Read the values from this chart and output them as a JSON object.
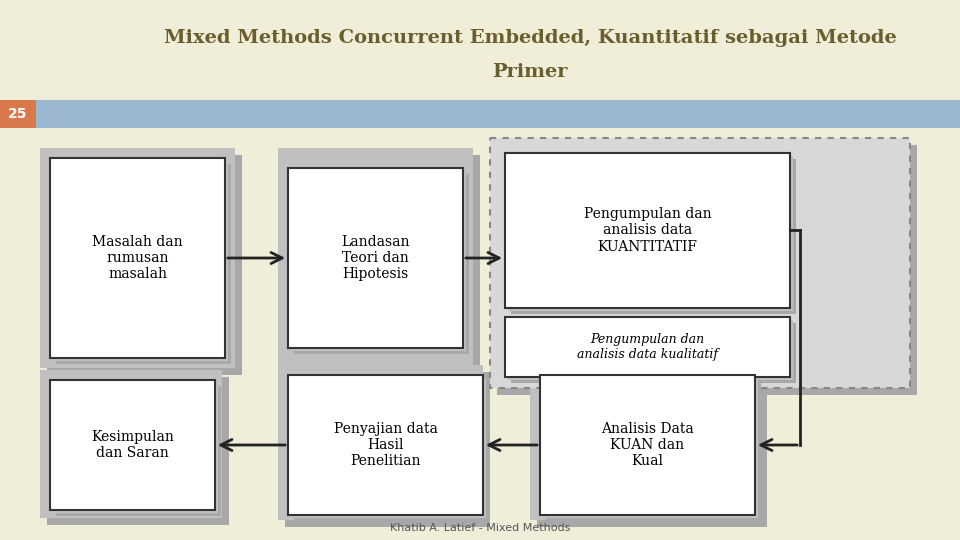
{
  "title_line1": "Mixed Methods Concurrent Embedded, Kuantitatif sebagai Metode",
  "title_line2": "Primer",
  "title_color": "#6B5E2E",
  "bg_color": "#F0EDD8",
  "header_bar_color": "#9BB8CF",
  "number_box_color": "#D9784A",
  "number_text": "25",
  "footer_text": "Khatib A. Latief - Mixed Methods",
  "box_bg": "#FFFFFF",
  "box_border": "#333333",
  "shadow_color": "#C0C0C0",
  "shadow_color2": "#A8A8A8",
  "dotted_box_border": "#888888",
  "dotted_bg": "#D8D8D8"
}
